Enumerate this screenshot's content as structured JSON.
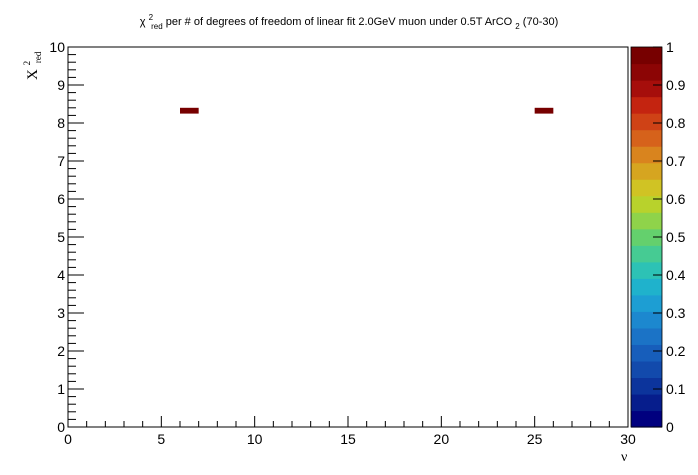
{
  "chart_data": {
    "type": "heatmap",
    "title": {
      "symbol": "χ",
      "sup": "2",
      "sub": "red",
      "text": " per # of degrees of freedom of linear fit 2.0GeV muon under 0.5T ArCO",
      "co_sub": "2",
      "suffix": " (70-30)"
    },
    "xlabel": "ν",
    "ylabel": {
      "symbol": "X",
      "sup": "2",
      "sub": "red"
    },
    "xlim": [
      0,
      30
    ],
    "ylim": [
      0,
      10
    ],
    "x_ticks": [
      0,
      5,
      10,
      15,
      20,
      25,
      30
    ],
    "y_ticks": [
      0,
      1,
      2,
      3,
      4,
      5,
      6,
      7,
      8,
      9,
      10
    ],
    "grid": false,
    "bins": [
      {
        "x0": 6.0,
        "x1": 7.0,
        "y0": 8.3,
        "y1": 8.4,
        "value": 1.0
      },
      {
        "x0": 25.0,
        "x1": 26.0,
        "y0": 8.3,
        "y1": 8.4,
        "value": 1.0
      }
    ],
    "colorbar": {
      "min": 0,
      "max": 1,
      "ticks": [
        0,
        0.1,
        0.2,
        0.3,
        0.4,
        0.5,
        0.6,
        0.7,
        0.8,
        0.9,
        1
      ],
      "tick_labels": [
        "0",
        "0.1",
        "0.2",
        "0.3",
        "0.4",
        "0.5",
        "0.6",
        "0.7",
        "0.8",
        "0.9",
        "1"
      ],
      "colors": [
        "#00007f",
        "#061d8c",
        "#0c349c",
        "#124aac",
        "#175ebb",
        "#1b73c6",
        "#1c88cf",
        "#1d9ed3",
        "#1fb2cc",
        "#2dc2b5",
        "#46cb93",
        "#64d06d",
        "#8fd34a",
        "#b8d22c",
        "#d0c324",
        "#d6a520",
        "#d9841e",
        "#d6621b",
        "#cf4216",
        "#c42410",
        "#a60e0b",
        "#8c0505",
        "#770000"
      ]
    }
  }
}
